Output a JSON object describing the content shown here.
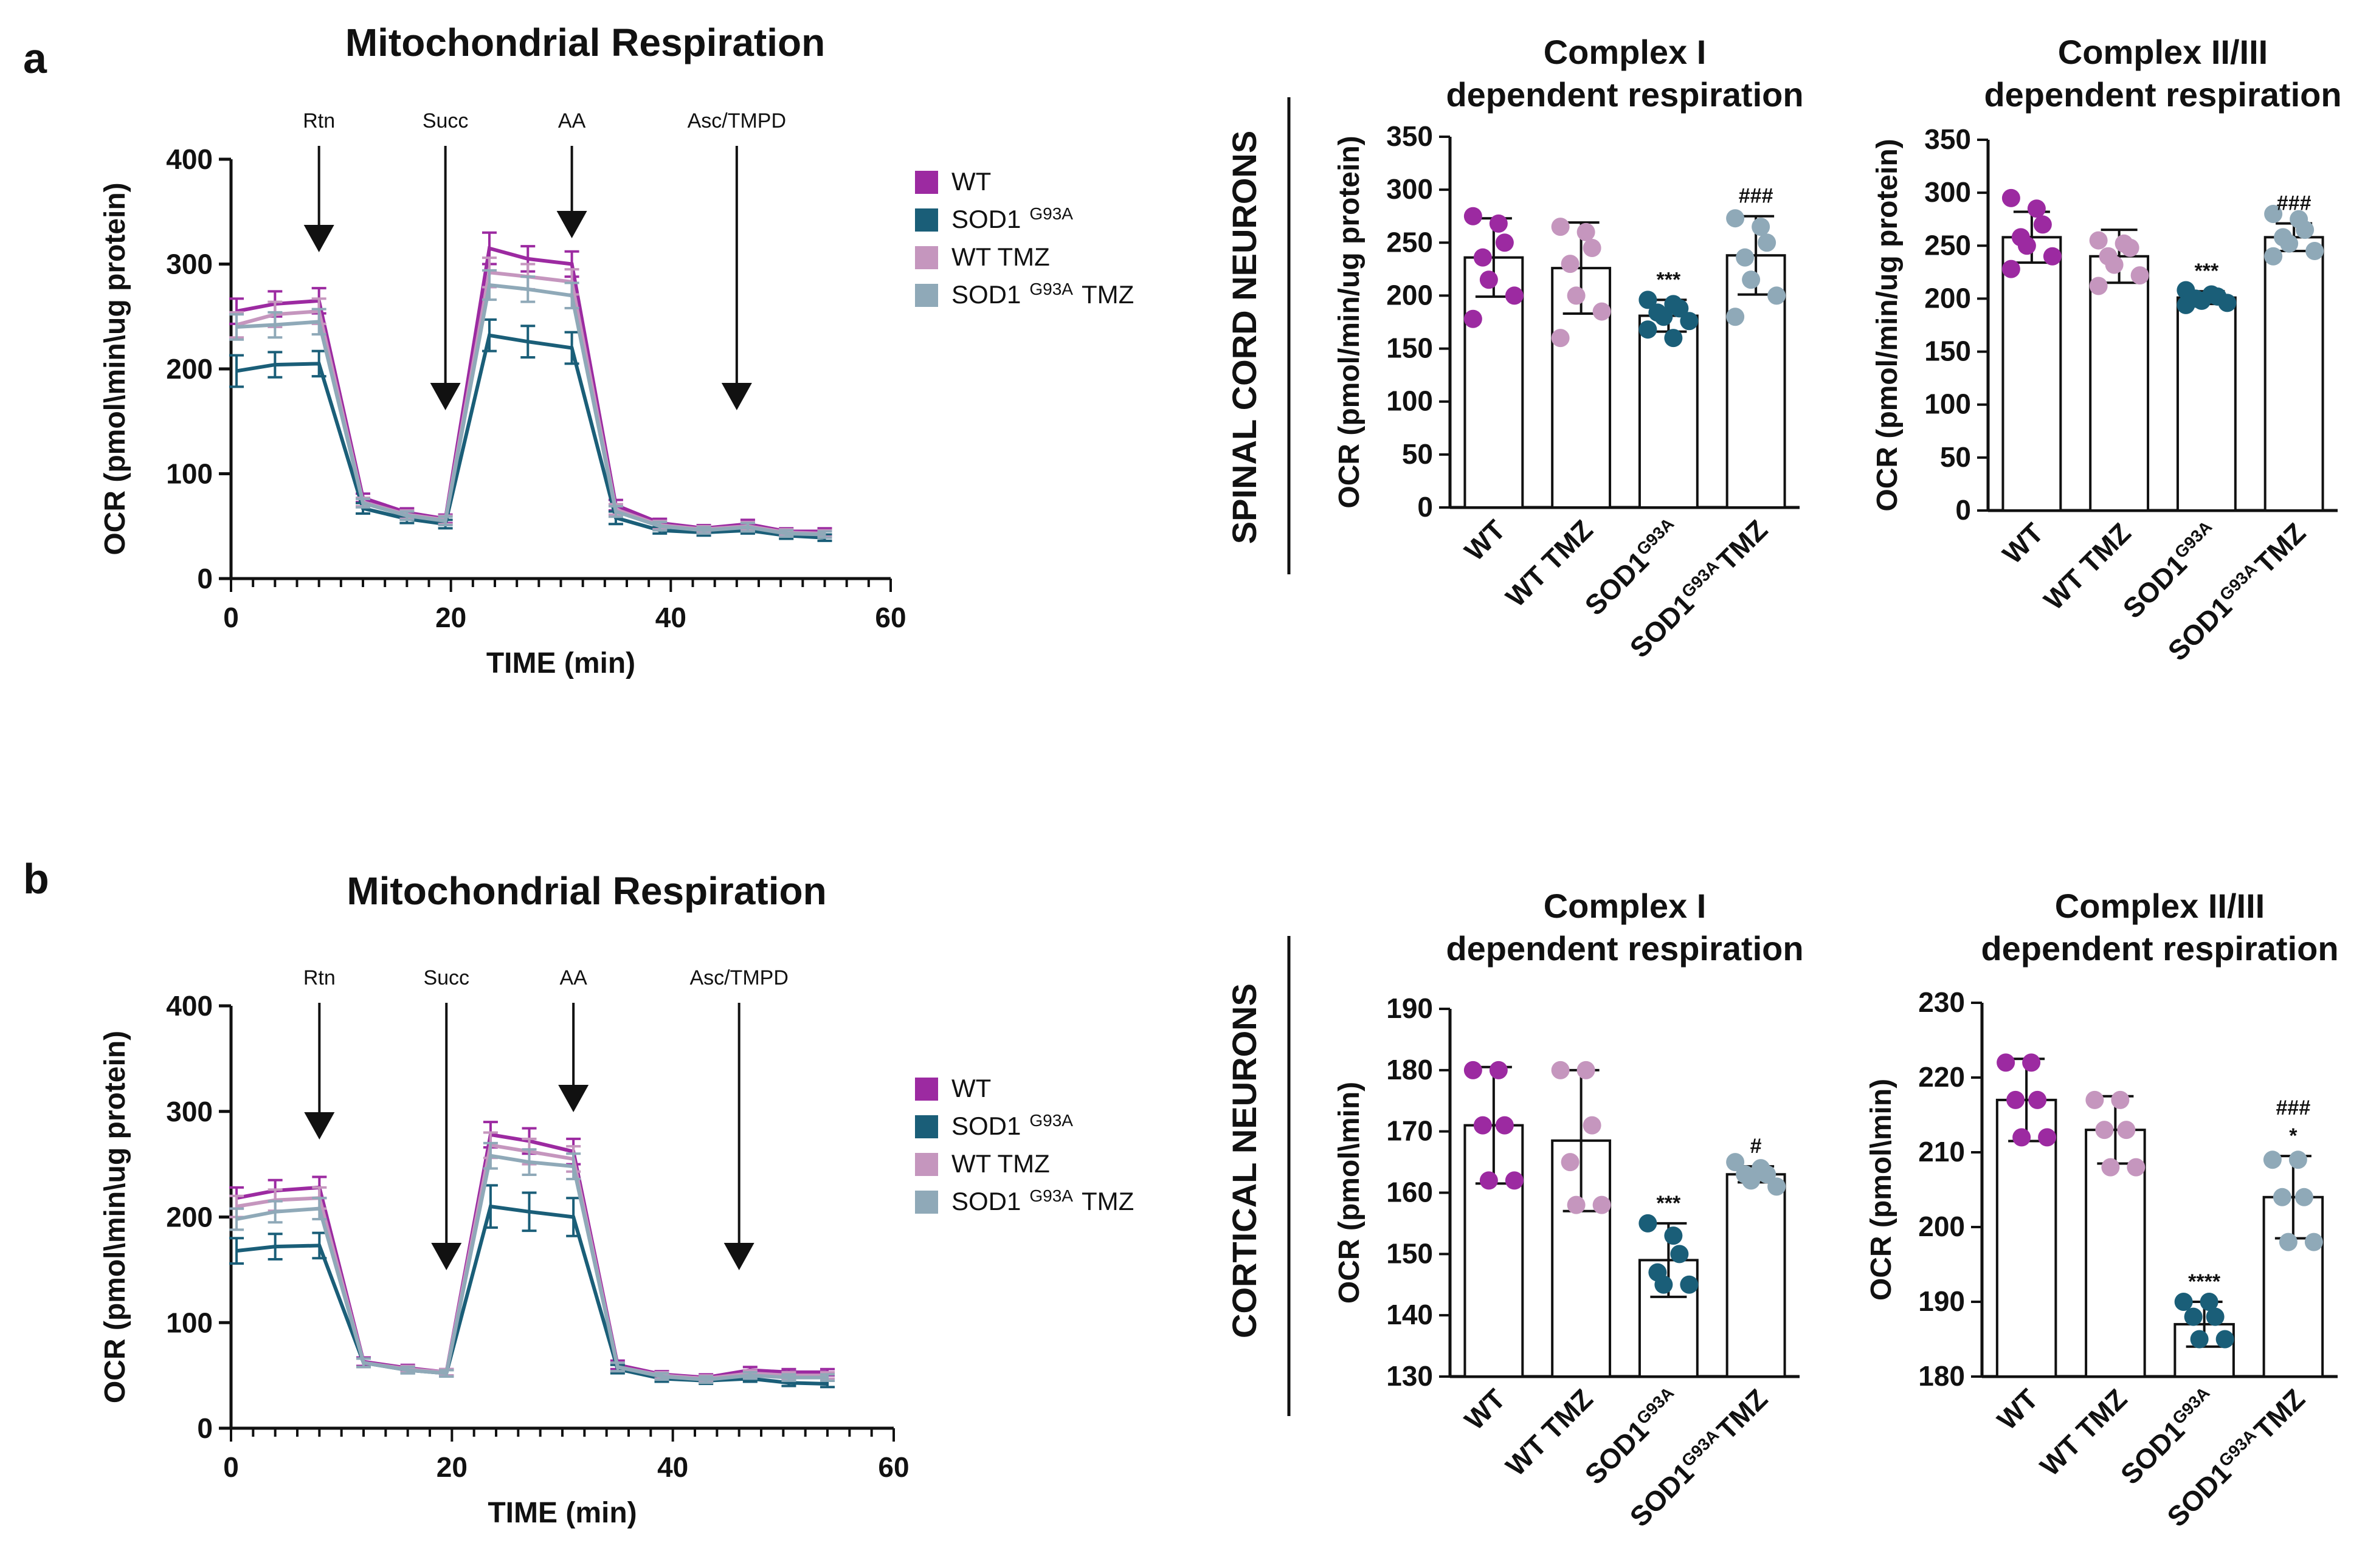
{
  "colors": {
    "WT": "#9c2aa1",
    "SOD1": "#1a5e78",
    "WT_TMZ": "#c596be",
    "SOD1_TMZ": "#8fa9b8"
  },
  "panels": [
    {
      "letter": "a",
      "section_label": "SPINAL CORD NEURONS"
    },
    {
      "letter": "b",
      "section_label": "CORTICAL NEURONS"
    }
  ],
  "legend": [
    {
      "key": "WT",
      "text": "WT",
      "sup": "",
      "suffix": ""
    },
    {
      "key": "SOD1",
      "text": "SOD1",
      "sup": "G93A",
      "suffix": ""
    },
    {
      "key": "WT_TMZ",
      "text": "WT TMZ",
      "sup": "",
      "suffix": ""
    },
    {
      "key": "SOD1_TMZ",
      "text": "SOD1",
      "sup": "G93A",
      "suffix": "TMZ"
    }
  ],
  "chart_data": [
    {
      "id": "a-line",
      "type": "line",
      "title": "Mitochondrial Respiration",
      "xlabel": "TIME (min)",
      "ylabel": "OCR (pmol\\min\\ug protein)",
      "xlim": [
        0,
        60
      ],
      "ylim": [
        0,
        400
      ],
      "xticks": [
        0,
        20,
        40,
        60
      ],
      "yticks": [
        0,
        100,
        200,
        300,
        400
      ],
      "injections": [
        {
          "label": "Rtn",
          "x": 8
        },
        {
          "label": "Succ",
          "x": 19.5
        },
        {
          "label": "AA",
          "x": 31
        },
        {
          "label": "Asc/TMPD",
          "x": 46
        }
      ],
      "x": [
        0.5,
        4,
        8,
        12,
        16,
        19.5,
        23.5,
        27,
        31,
        35,
        39,
        43,
        47,
        50.5,
        54
      ],
      "series": [
        {
          "name": "WT",
          "key": "WT",
          "values": [
            255,
            262,
            265,
            77,
            63,
            57,
            315,
            305,
            300,
            70,
            53,
            48,
            52,
            45,
            45
          ],
          "err": [
            12,
            12,
            12,
            4,
            4,
            4,
            15,
            12,
            12,
            5,
            4,
            3,
            4,
            3,
            3
          ]
        },
        {
          "name": "SOD1 G93A",
          "key": "SOD1",
          "values": [
            198,
            204,
            205,
            67,
            57,
            52,
            232,
            226,
            220,
            58,
            46,
            44,
            46,
            41,
            39
          ],
          "err": [
            15,
            12,
            12,
            5,
            4,
            4,
            15,
            15,
            15,
            6,
            3,
            3,
            3,
            3,
            3
          ]
        },
        {
          "name": "WT TMZ",
          "key": "WT_TMZ",
          "values": [
            242,
            252,
            255,
            73,
            61,
            56,
            292,
            288,
            283,
            66,
            51,
            47,
            50,
            44,
            43
          ],
          "err": [
            12,
            12,
            12,
            4,
            4,
            4,
            14,
            12,
            12,
            5,
            4,
            3,
            4,
            3,
            3
          ]
        },
        {
          "name": "SOD1 G93A TMZ",
          "key": "SOD1_TMZ",
          "values": [
            240,
            242,
            245,
            72,
            60,
            55,
            280,
            276,
            270,
            64,
            50,
            46,
            49,
            43,
            42
          ],
          "err": [
            12,
            12,
            12,
            4,
            4,
            4,
            14,
            12,
            12,
            5,
            4,
            3,
            4,
            3,
            3
          ]
        }
      ]
    },
    {
      "id": "a-bar1",
      "type": "bar",
      "title": [
        "Complex I",
        "dependent  respiration"
      ],
      "ylabel": "OCR (pmol/min/ug protein)",
      "ylim": [
        0,
        350
      ],
      "yticks": [
        0,
        50,
        100,
        150,
        200,
        250,
        300,
        350
      ],
      "categories": [
        {
          "text": "WT",
          "sup": "",
          "suffix": ""
        },
        {
          "text": "WT TMZ",
          "sup": "",
          "suffix": ""
        },
        {
          "text": "SOD1",
          "sup": "G93A",
          "suffix": ""
        },
        {
          "text": "SOD1",
          "sup": "G93A",
          "suffix": "TMZ"
        }
      ],
      "keys": [
        "WT",
        "WT_TMZ",
        "SOD1",
        "SOD1_TMZ"
      ],
      "values": [
        236,
        226,
        181,
        238
      ],
      "sd": [
        37,
        43,
        15,
        37
      ],
      "points": [
        [
          275,
          268,
          250,
          236,
          215,
          200,
          178
        ],
        [
          265,
          260,
          245,
          230,
          200,
          185,
          160
        ],
        [
          196,
          192,
          188,
          184,
          180,
          176,
          168,
          160
        ],
        [
          273,
          265,
          250,
          236,
          215,
          200,
          180
        ]
      ],
      "sig": [
        "",
        "",
        "***",
        "###"
      ]
    },
    {
      "id": "a-bar2",
      "type": "bar",
      "title": [
        "Complex II/III",
        "dependent  respiration"
      ],
      "ylabel": "OCR (pmol/min/ug protein)",
      "ylim": [
        0,
        350
      ],
      "yticks": [
        0,
        50,
        100,
        150,
        200,
        250,
        300,
        350
      ],
      "categories": [
        {
          "text": "WT",
          "sup": "",
          "suffix": ""
        },
        {
          "text": "WT TMZ",
          "sup": "",
          "suffix": ""
        },
        {
          "text": "SOD1",
          "sup": "G93A",
          "suffix": ""
        },
        {
          "text": "SOD1",
          "sup": "G93A",
          "suffix": "TMZ"
        }
      ],
      "keys": [
        "WT",
        "WT_TMZ",
        "SOD1",
        "SOD1_TMZ"
      ],
      "values": [
        258,
        240,
        201,
        258
      ],
      "sd": [
        24,
        25,
        6,
        13
      ],
      "points": [
        [
          295,
          285,
          270,
          258,
          250,
          240,
          228
        ],
        [
          255,
          252,
          248,
          240,
          232,
          222,
          212
        ],
        [
          208,
          204,
          202,
          200,
          198,
          196,
          194
        ],
        [
          280,
          275,
          265,
          258,
          252,
          245,
          240
        ]
      ],
      "sig": [
        "",
        "",
        "***",
        "###"
      ]
    },
    {
      "id": "b-line",
      "type": "line",
      "title": "Mitochondrial Respiration",
      "xlabel": "TIME (min)",
      "ylabel": "OCR (pmol\\min\\ug protein)",
      "xlim": [
        0,
        60
      ],
      "ylim": [
        0,
        400
      ],
      "xticks": [
        0,
        20,
        40,
        60
      ],
      "yticks": [
        0,
        100,
        200,
        300,
        400
      ],
      "injections": [
        {
          "label": "Rtn",
          "x": 8
        },
        {
          "label": "Succ",
          "x": 19.5
        },
        {
          "label": "AA",
          "x": 31
        },
        {
          "label": "Asc/TMPD",
          "x": 46
        }
      ],
      "x": [
        0.5,
        4,
        8,
        12,
        16,
        19.5,
        23.5,
        27,
        31,
        35,
        39,
        43,
        47,
        50.5,
        54
      ],
      "series": [
        {
          "name": "WT",
          "key": "WT",
          "values": [
            218,
            225,
            228,
            63,
            57,
            53,
            278,
            272,
            262,
            60,
            51,
            48,
            55,
            53,
            53
          ],
          "err": [
            10,
            10,
            10,
            4,
            3,
            3,
            12,
            12,
            12,
            4,
            3,
            3,
            3,
            3,
            3
          ]
        },
        {
          "name": "SOD1 G93A",
          "key": "SOD1",
          "values": [
            168,
            172,
            173,
            62,
            55,
            52,
            210,
            205,
            200,
            56,
            47,
            45,
            47,
            43,
            42
          ],
          "err": [
            12,
            12,
            12,
            4,
            3,
            3,
            20,
            18,
            18,
            4,
            3,
            3,
            3,
            3,
            3
          ]
        },
        {
          "name": "WT TMZ",
          "key": "WT_TMZ",
          "values": [
            210,
            216,
            218,
            62,
            56,
            53,
            268,
            262,
            255,
            58,
            50,
            47,
            52,
            50,
            50
          ],
          "err": [
            10,
            10,
            10,
            4,
            3,
            3,
            12,
            12,
            12,
            4,
            3,
            3,
            3,
            3,
            3
          ]
        },
        {
          "name": "SOD1 G93A TMZ",
          "key": "SOD1_TMZ",
          "values": [
            198,
            205,
            208,
            62,
            55,
            52,
            258,
            252,
            248,
            58,
            49,
            46,
            50,
            48,
            48
          ],
          "err": [
            10,
            10,
            10,
            4,
            3,
            3,
            12,
            12,
            12,
            4,
            3,
            3,
            3,
            3,
            3
          ]
        }
      ]
    },
    {
      "id": "b-bar1",
      "type": "bar",
      "title": [
        "Complex I",
        "dependent respiration"
      ],
      "ylabel": "OCR (pmol\\min)",
      "ylim": [
        130,
        190
      ],
      "yticks": [
        130,
        140,
        150,
        160,
        170,
        180,
        190
      ],
      "categories": [
        {
          "text": "WT",
          "sup": "",
          "suffix": ""
        },
        {
          "text": "WT TMZ",
          "sup": "",
          "suffix": ""
        },
        {
          "text": "SOD1",
          "sup": "G93A",
          "suffix": ""
        },
        {
          "text": "SOD1",
          "sup": "G93A",
          "suffix": "TMZ"
        }
      ],
      "keys": [
        "WT",
        "WT_TMZ",
        "SOD1",
        "SOD1_TMZ"
      ],
      "values": [
        171,
        168.5,
        149,
        163
      ],
      "sd": [
        9.5,
        11.5,
        6,
        1.3
      ],
      "points": [
        [
          180,
          180,
          171,
          171,
          162,
          162
        ],
        [
          180,
          180,
          171,
          165,
          158,
          158
        ],
        [
          155,
          153,
          150,
          147,
          145,
          145
        ],
        [
          165,
          164,
          163,
          163,
          162,
          161
        ]
      ],
      "sig": [
        "",
        "",
        "***",
        "#"
      ]
    },
    {
      "id": "b-bar2",
      "type": "bar",
      "title": [
        "Complex II/III",
        "dependent respiration"
      ],
      "ylabel": "OCR (pmol\\min)",
      "ylim": [
        180,
        230
      ],
      "yticks": [
        180,
        190,
        200,
        210,
        220,
        230
      ],
      "categories": [
        {
          "text": "WT",
          "sup": "",
          "suffix": ""
        },
        {
          "text": "WT TMZ",
          "sup": "",
          "suffix": ""
        },
        {
          "text": "SOD1",
          "sup": "G93A",
          "suffix": ""
        },
        {
          "text": "SOD1",
          "sup": "G93A",
          "suffix": "TMZ"
        }
      ],
      "keys": [
        "WT",
        "WT_TMZ",
        "SOD1",
        "SOD1_TMZ"
      ],
      "values": [
        217,
        213,
        187,
        204
      ],
      "sd": [
        5.5,
        4.5,
        3,
        5.5
      ],
      "points": [
        [
          222,
          222,
          217,
          217,
          212,
          212
        ],
        [
          217,
          217,
          213,
          213,
          208,
          208
        ],
        [
          190,
          190,
          188,
          188,
          185,
          185
        ],
        [
          209,
          209,
          204,
          204,
          198,
          198
        ]
      ],
      "sig": [
        "",
        "",
        "****",
        "*"
      ],
      "sig2": [
        "",
        "",
        "",
        "###"
      ]
    }
  ]
}
